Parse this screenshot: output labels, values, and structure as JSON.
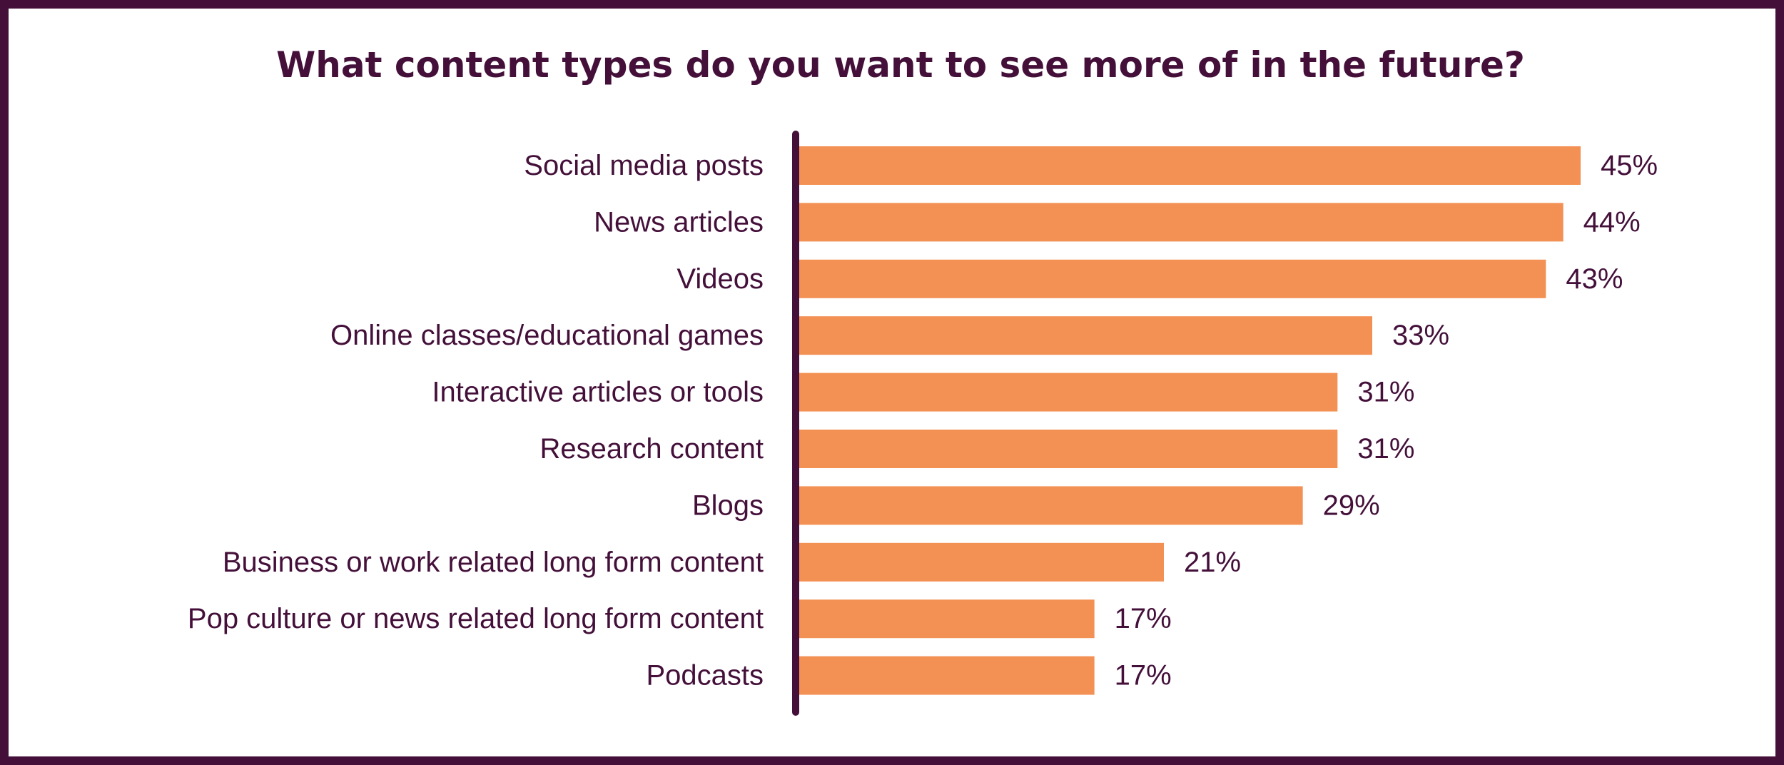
{
  "chart_data": {
    "type": "bar",
    "orientation": "horizontal",
    "title": "What content types do you want to see more of in the future?",
    "categories": [
      "Social media posts",
      "News articles",
      "Videos",
      "Online classes/educational games",
      "Interactive articles or tools",
      "Research content",
      "Blogs",
      "Business or work related long form content",
      "Pop culture or news related long form content",
      "Podcasts"
    ],
    "values": [
      45,
      44,
      43,
      33,
      31,
      31,
      29,
      21,
      17,
      17
    ],
    "value_labels": [
      "45%",
      "44%",
      "43%",
      "33%",
      "31%",
      "31%",
      "29%",
      "21%",
      "17%",
      "17%"
    ],
    "xlim": [
      0,
      45
    ],
    "grid": false,
    "colors": {
      "bar": "#f39155",
      "text": "#44103a",
      "axis": "#44103a",
      "border": "#44103a"
    }
  }
}
